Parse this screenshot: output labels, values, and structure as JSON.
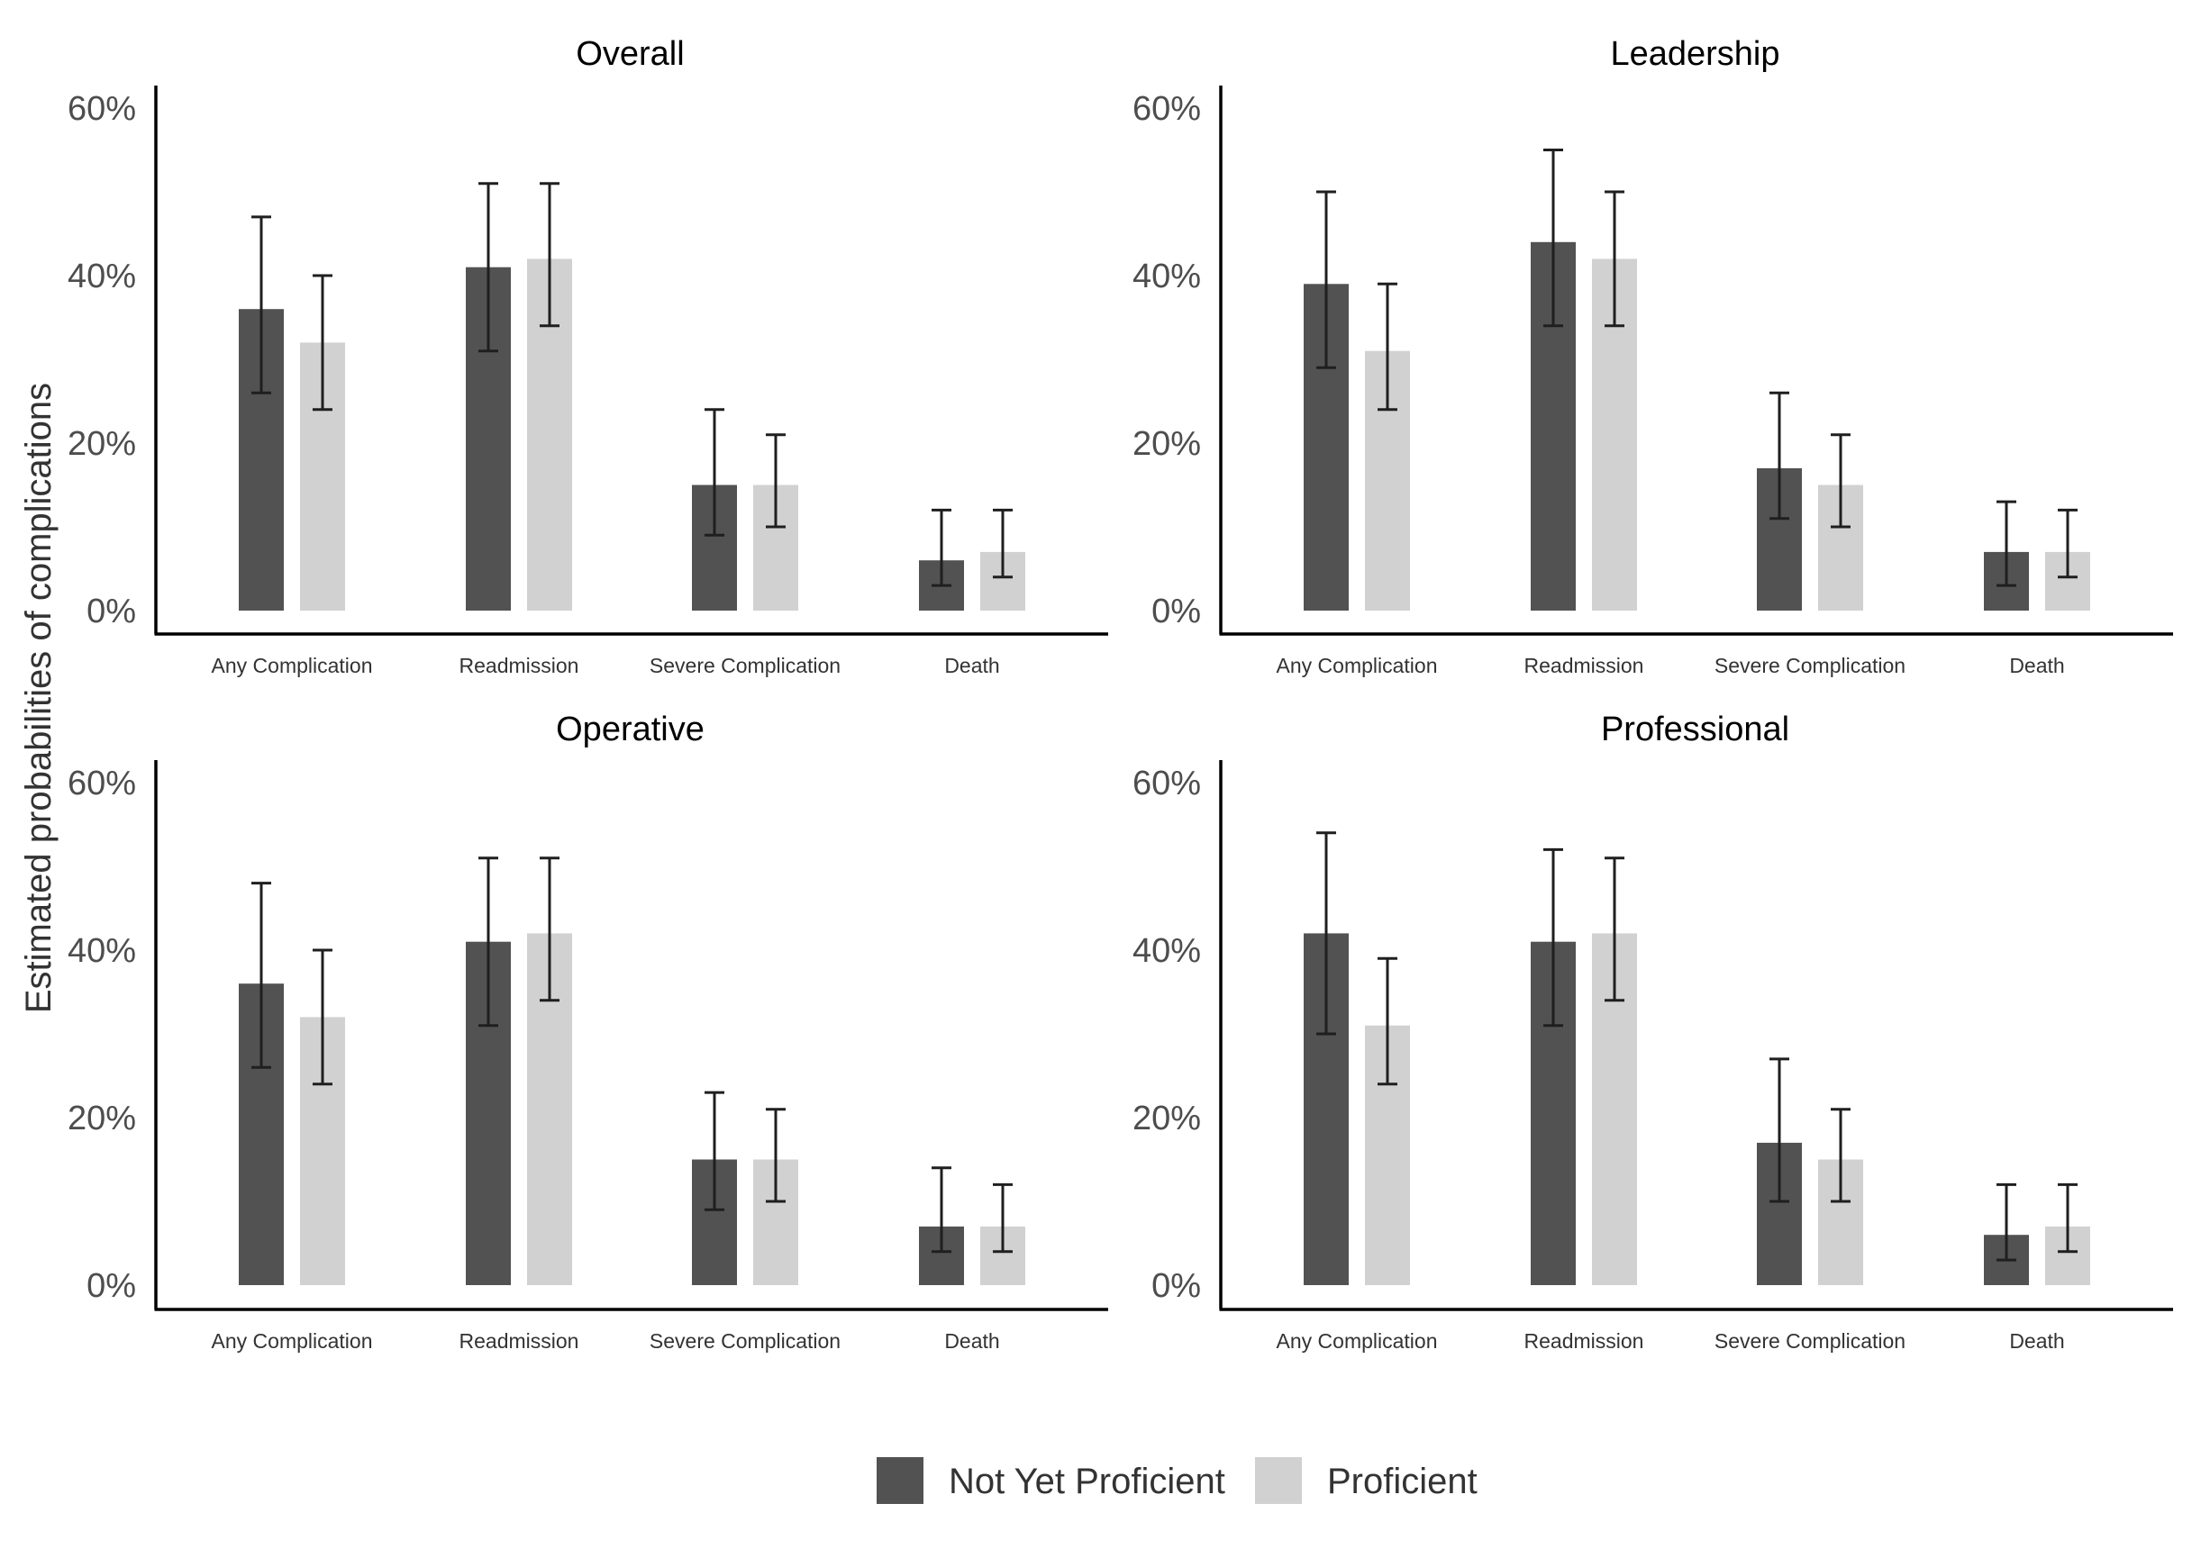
{
  "chart_data": [
    {
      "type": "bar",
      "title": "Overall",
      "categories": [
        "Any Complication",
        "Readmission",
        "Severe Complication",
        "Death"
      ],
      "series": [
        {
          "name": "Not Yet Proficient",
          "values": [
            0.36,
            0.41,
            0.15,
            0.06
          ],
          "lower": [
            0.26,
            0.31,
            0.09,
            0.03
          ],
          "upper": [
            0.47,
            0.51,
            0.24,
            0.12
          ]
        },
        {
          "name": "Proficient",
          "values": [
            0.32,
            0.42,
            0.15,
            0.07
          ],
          "lower": [
            0.24,
            0.34,
            0.1,
            0.04
          ],
          "upper": [
            0.4,
            0.51,
            0.21,
            0.12
          ]
        }
      ],
      "ylim": [
        0,
        0.6
      ],
      "yticks": [
        "0%",
        "20%",
        "40%",
        "60%"
      ]
    },
    {
      "type": "bar",
      "title": "Leadership",
      "categories": [
        "Any Complication",
        "Readmission",
        "Severe Complication",
        "Death"
      ],
      "series": [
        {
          "name": "Not Yet Proficient",
          "values": [
            0.39,
            0.44,
            0.17,
            0.07
          ],
          "lower": [
            0.29,
            0.34,
            0.11,
            0.03
          ],
          "upper": [
            0.5,
            0.55,
            0.26,
            0.13
          ]
        },
        {
          "name": "Proficient",
          "values": [
            0.31,
            0.42,
            0.15,
            0.07
          ],
          "lower": [
            0.24,
            0.34,
            0.1,
            0.04
          ],
          "upper": [
            0.39,
            0.5,
            0.21,
            0.12
          ]
        }
      ],
      "ylim": [
        0,
        0.6
      ],
      "yticks": [
        "0%",
        "20%",
        "40%",
        "60%"
      ]
    },
    {
      "type": "bar",
      "title": "Operative",
      "categories": [
        "Any Complication",
        "Readmission",
        "Severe Complication",
        "Death"
      ],
      "series": [
        {
          "name": "Not Yet Proficient",
          "values": [
            0.36,
            0.41,
            0.15,
            0.07
          ],
          "lower": [
            0.26,
            0.31,
            0.09,
            0.04
          ],
          "upper": [
            0.48,
            0.51,
            0.23,
            0.14
          ]
        },
        {
          "name": "Proficient",
          "values": [
            0.32,
            0.42,
            0.15,
            0.07
          ],
          "lower": [
            0.24,
            0.34,
            0.1,
            0.04
          ],
          "upper": [
            0.4,
            0.51,
            0.21,
            0.12
          ]
        }
      ],
      "ylim": [
        0,
        0.6
      ],
      "yticks": [
        "0%",
        "20%",
        "40%",
        "60%"
      ]
    },
    {
      "type": "bar",
      "title": "Professional",
      "categories": [
        "Any Complication",
        "Readmission",
        "Severe Complication",
        "Death"
      ],
      "series": [
        {
          "name": "Not Yet Proficient",
          "values": [
            0.42,
            0.41,
            0.17,
            0.06
          ],
          "lower": [
            0.3,
            0.31,
            0.1,
            0.03
          ],
          "upper": [
            0.54,
            0.52,
            0.27,
            0.12
          ]
        },
        {
          "name": "Proficient",
          "values": [
            0.31,
            0.42,
            0.15,
            0.07
          ],
          "lower": [
            0.24,
            0.34,
            0.1,
            0.04
          ],
          "upper": [
            0.39,
            0.51,
            0.21,
            0.12
          ]
        }
      ],
      "ylim": [
        0,
        0.6
      ],
      "yticks": [
        "0%",
        "20%",
        "40%",
        "60%"
      ]
    }
  ],
  "ylabel": "Estimated probabilities of complications",
  "legend": {
    "placement": "bottom",
    "items": [
      {
        "name": "Not Yet Proficient",
        "color": "#525252"
      },
      {
        "name": "Proficient",
        "color": "#d1d1d1"
      }
    ]
  },
  "colors": {
    "not_yet_proficient": "#525252",
    "proficient": "#d1d1d1",
    "error_bar": "#1f1f1f"
  }
}
